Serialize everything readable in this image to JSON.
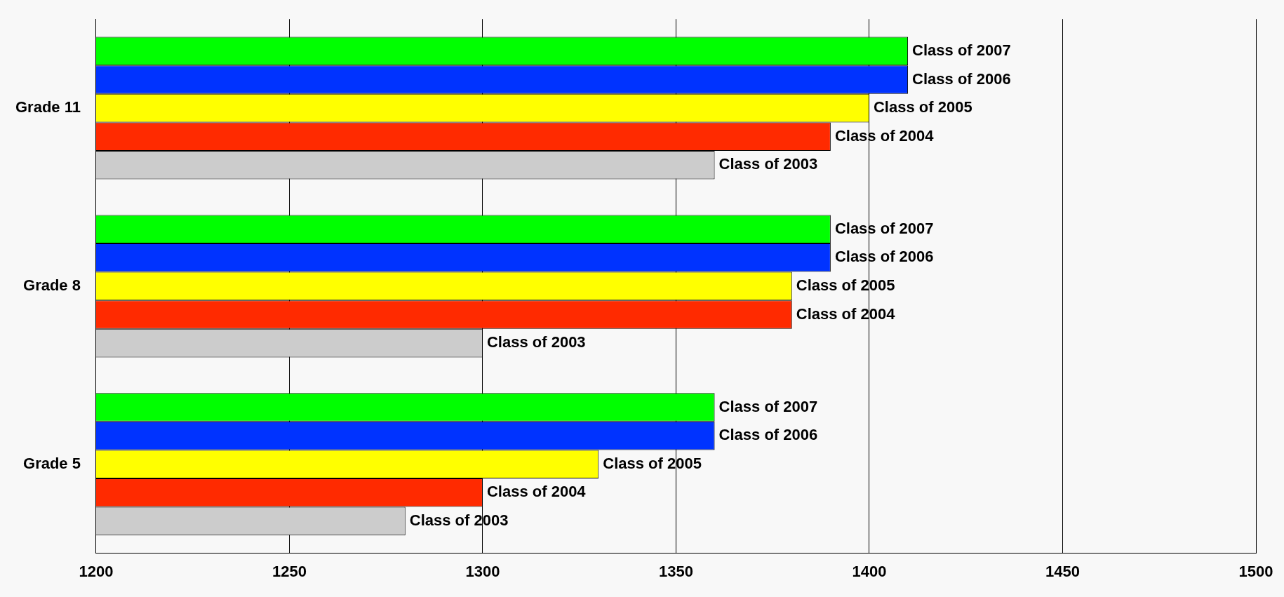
{
  "chart_data": {
    "type": "bar",
    "orientation": "horizontal",
    "categories": [
      "Grade 11",
      "Grade 8",
      "Grade 5"
    ],
    "series": [
      {
        "name": "Class of 2007",
        "color": "#00ff00",
        "values": [
          1410,
          1390,
          1360
        ]
      },
      {
        "name": "Class of 2006",
        "color": "#0033ff",
        "values": [
          1410,
          1390,
          1360
        ]
      },
      {
        "name": "Class of 2005",
        "color": "#ffff00",
        "values": [
          1400,
          1380,
          1330
        ]
      },
      {
        "name": "Class of 2004",
        "color": "#ff2a00",
        "values": [
          1390,
          1380,
          1300
        ]
      },
      {
        "name": "Class of 2003",
        "color": "#cccccc",
        "values": [
          1360,
          1300,
          1280
        ]
      }
    ],
    "xlim": [
      1200,
      1500
    ],
    "xticks": [
      1200,
      1250,
      1300,
      1350,
      1400,
      1450,
      1500
    ],
    "grid": "x",
    "legend": false
  }
}
